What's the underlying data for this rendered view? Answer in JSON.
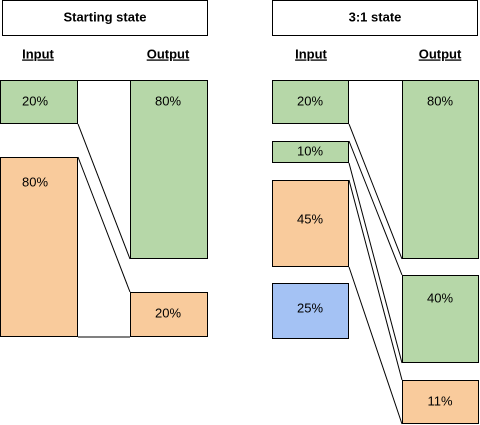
{
  "panels": [
    {
      "title": "Starting state",
      "input_header": "Input",
      "output_header": "Output",
      "inputs": [
        "20%",
        "80%"
      ],
      "outputs": [
        "80%",
        "20%"
      ]
    },
    {
      "title": "3:1 state",
      "input_header": "Input",
      "output_header": "Output",
      "inputs": [
        "20%",
        "10%",
        "45%",
        "25%"
      ],
      "outputs": [
        "80%",
        "40%",
        "11%"
      ]
    }
  ]
}
